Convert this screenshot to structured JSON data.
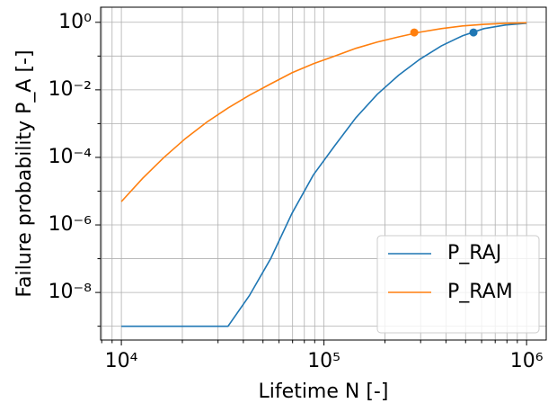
{
  "chart_data": {
    "type": "line",
    "x_label": "Lifetime N [-]",
    "y_label": "Failure probability P_A [-]",
    "log_x": true,
    "log_y": true,
    "grid": true,
    "legend": "lower right",
    "x": [
      10000,
      12743,
      16238,
      20691,
      26367,
      33598,
      42813,
      54556,
      69519,
      88587,
      112884,
      143845,
      183298,
      233572,
      297635,
      379269,
      483293,
      615848,
      784760,
      1000000
    ],
    "series": [
      {
        "name": "P_RAJ",
        "color": "#1f77b4",
        "values": [
          1e-09,
          1e-09,
          1e-09,
          1e-09,
          1e-09,
          1e-09,
          8e-09,
          1e-07,
          2.2e-06,
          3e-05,
          0.00022,
          0.0015,
          0.0074,
          0.027,
          0.081,
          0.2,
          0.4,
          0.65,
          0.83,
          0.94
        ],
        "marker": {
          "x": 547000,
          "y": 0.5
        }
      },
      {
        "name": "P_RAM",
        "color": "#ff7f0e",
        "values": [
          4.9e-06,
          2.4e-05,
          0.0001,
          0.00036,
          0.0011,
          0.0029,
          0.0069,
          0.015,
          0.032,
          0.059,
          0.1,
          0.17,
          0.26,
          0.37,
          0.51,
          0.65,
          0.78,
          0.87,
          0.93,
          0.97
        ],
        "marker": {
          "x": 279000,
          "y": 0.5
        }
      }
    ],
    "xlim": [
      7900,
      1250000
    ],
    "ylim": [
      3.9e-10,
      2.8
    ],
    "xticks": [
      {
        "value": 10000,
        "label": "10⁴"
      },
      {
        "value": 100000,
        "label": "10⁵"
      },
      {
        "value": 1000000,
        "label": "10⁶"
      }
    ],
    "xminorticks": [
      8000,
      9000,
      20000,
      30000,
      40000,
      50000,
      60000,
      70000,
      80000,
      90000,
      200000,
      300000,
      400000,
      500000,
      600000,
      700000,
      800000,
      900000
    ],
    "yticks": [
      {
        "value": 1,
        "label": "10⁰"
      },
      {
        "value": 0.01,
        "label": "10⁻²"
      },
      {
        "value": 0.0001,
        "label": "10⁻⁴"
      },
      {
        "value": 1e-06,
        "label": "10⁻⁶"
      },
      {
        "value": 1e-08,
        "label": "10⁻⁸"
      }
    ],
    "yminorticks": [
      0.1,
      0.001,
      1e-05,
      1e-07,
      1e-09
    ]
  }
}
